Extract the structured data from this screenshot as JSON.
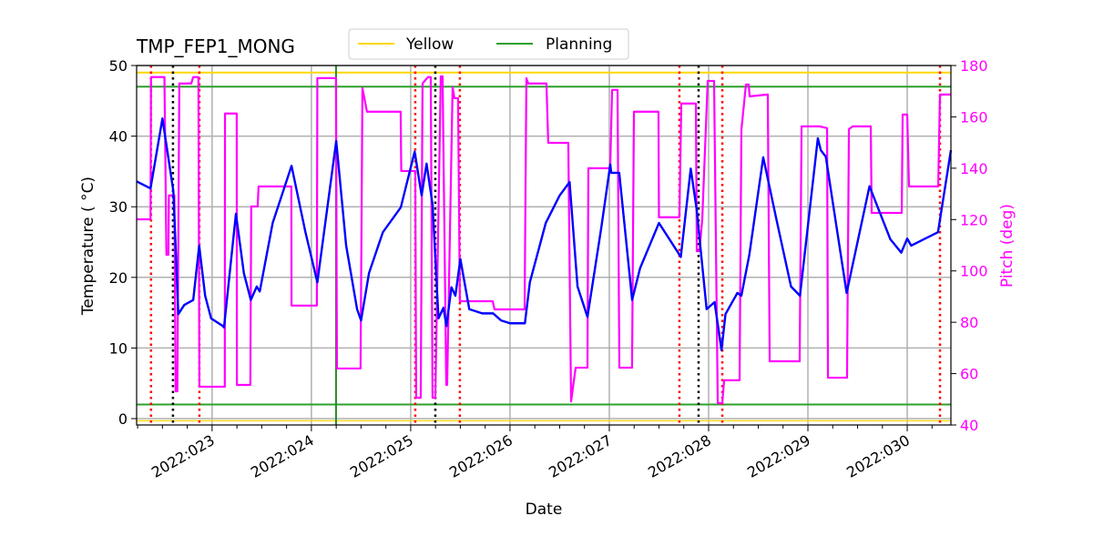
{
  "chart_data": {
    "type": "line",
    "title": "TMP_FEP1_MONG",
    "xlabel": "Date",
    "ylabel": "Temperature ($^\\circ$C)",
    "ylabel_display": "Temperature ( °C)",
    "y2label": "Pitch (deg)",
    "xlim": [
      22.24,
      30.44
    ],
    "ylim": [
      -0.9,
      50
    ],
    "y2lim": [
      40,
      180
    ],
    "grid": true,
    "legend_position": "top-center (above plot)",
    "x_ticks": [
      {
        "value": 23,
        "label": "2022:023"
      },
      {
        "value": 24,
        "label": "2022:024"
      },
      {
        "value": 25,
        "label": "2022:025"
      },
      {
        "value": 26,
        "label": "2022:026"
      },
      {
        "value": 27,
        "label": "2022:027"
      },
      {
        "value": 28,
        "label": "2022:028"
      },
      {
        "value": 29,
        "label": "2022:029"
      },
      {
        "value": 30,
        "label": "2022:030"
      }
    ],
    "y_ticks": [
      0,
      10,
      20,
      30,
      40,
      50
    ],
    "y2_ticks": [
      40,
      60,
      80,
      100,
      120,
      140,
      160,
      180
    ],
    "colors": {
      "temperature": "#0000ff",
      "pitch": "#ff00ff",
      "yellow": "#ffd700",
      "planning": "#228b22",
      "grid": "#b0b0b0",
      "red_marker": "#ff0000",
      "black_marker": "#000000"
    },
    "limit_lines": [
      {
        "name": "Yellow",
        "values": [
          49.0,
          -0.3
        ],
        "color": "#ffd700"
      },
      {
        "name": "Planning",
        "values": [
          47.0,
          2.0
        ],
        "color": "#2ca02c"
      }
    ],
    "legend": [
      {
        "label": "Yellow",
        "color": "#ffd700"
      },
      {
        "label": "Planning",
        "color": "#2ca02c"
      }
    ],
    "vertical_markers": {
      "red_dotted": [
        22.385,
        22.872,
        25.046,
        25.495,
        27.706,
        28.138,
        30.33
      ],
      "black_dotted": [
        22.606,
        25.248,
        27.899
      ],
      "green_solid": [
        24.248
      ]
    },
    "series": [
      {
        "axis": "left",
        "color": "#0000ff",
        "points": [
          [
            22.24,
            33.6
          ],
          [
            22.38,
            32.6
          ],
          [
            22.5,
            42.5
          ],
          [
            22.61,
            32.2
          ],
          [
            22.66,
            14.8
          ],
          [
            22.72,
            16.1
          ],
          [
            22.81,
            16.8
          ],
          [
            22.87,
            24.5
          ],
          [
            22.93,
            17.4
          ],
          [
            22.99,
            14.2
          ],
          [
            23.11,
            13.1
          ],
          [
            23.12,
            12.9
          ],
          [
            23.24,
            29.0
          ],
          [
            23.32,
            20.6
          ],
          [
            23.39,
            16.8
          ],
          [
            23.45,
            18.7
          ],
          [
            23.48,
            18.0
          ],
          [
            23.61,
            27.7
          ],
          [
            23.8,
            35.8
          ],
          [
            23.94,
            26.4
          ],
          [
            24.06,
            19.3
          ],
          [
            24.25,
            39.3
          ],
          [
            24.35,
            24.5
          ],
          [
            24.46,
            15.5
          ],
          [
            24.5,
            13.9
          ],
          [
            24.58,
            20.6
          ],
          [
            24.72,
            26.4
          ],
          [
            24.9,
            29.9
          ],
          [
            25.04,
            37.8
          ],
          [
            25.11,
            31.6
          ],
          [
            25.16,
            36.1
          ],
          [
            25.22,
            30.3
          ],
          [
            25.28,
            14.2
          ],
          [
            25.33,
            15.7
          ],
          [
            25.36,
            13.1
          ],
          [
            25.41,
            18.6
          ],
          [
            25.45,
            17.4
          ],
          [
            25.5,
            22.6
          ],
          [
            25.59,
            15.5
          ],
          [
            25.72,
            14.9
          ],
          [
            25.83,
            14.9
          ],
          [
            25.91,
            13.9
          ],
          [
            26.0,
            13.5
          ],
          [
            26.15,
            13.5
          ],
          [
            26.2,
            19.3
          ],
          [
            26.36,
            27.7
          ],
          [
            26.5,
            31.6
          ],
          [
            26.6,
            33.5
          ],
          [
            26.68,
            18.7
          ],
          [
            26.78,
            14.4
          ],
          [
            26.92,
            27.1
          ],
          [
            27.01,
            36.0
          ],
          [
            27.02,
            34.8
          ],
          [
            27.1,
            34.8
          ],
          [
            27.23,
            16.8
          ],
          [
            27.31,
            21.3
          ],
          [
            27.5,
            27.7
          ],
          [
            27.72,
            22.9
          ],
          [
            27.82,
            35.4
          ],
          [
            27.88,
            29.6
          ],
          [
            27.98,
            15.5
          ],
          [
            28.06,
            16.5
          ],
          [
            28.13,
            9.7
          ],
          [
            28.17,
            14.8
          ],
          [
            28.29,
            17.8
          ],
          [
            28.33,
            17.4
          ],
          [
            28.41,
            23.2
          ],
          [
            28.55,
            37.0
          ],
          [
            28.68,
            28.4
          ],
          [
            28.83,
            18.7
          ],
          [
            28.92,
            17.4
          ],
          [
            29.1,
            39.7
          ],
          [
            29.13,
            38.0
          ],
          [
            29.18,
            37.1
          ],
          [
            29.39,
            17.8
          ],
          [
            29.62,
            32.9
          ],
          [
            29.83,
            25.4
          ],
          [
            29.94,
            23.5
          ],
          [
            30.0,
            25.5
          ],
          [
            30.04,
            24.5
          ],
          [
            30.31,
            26.4
          ],
          [
            30.44,
            38.0
          ]
        ]
      },
      {
        "axis": "right",
        "color": "#ff00ff",
        "points": [
          [
            22.24,
            120.1
          ],
          [
            22.38,
            120.1
          ],
          [
            22.385,
            175.5
          ],
          [
            22.52,
            175.5
          ],
          [
            22.54,
            106.3
          ],
          [
            22.56,
            106.3
          ],
          [
            22.565,
            129.4
          ],
          [
            22.62,
            129.4
          ],
          [
            22.633,
            53.1
          ],
          [
            22.65,
            53.1
          ],
          [
            22.67,
            173
          ],
          [
            22.79,
            173
          ],
          [
            22.81,
            175.5
          ],
          [
            22.862,
            175.5
          ],
          [
            22.872,
            54.9
          ],
          [
            23.128,
            54.9
          ],
          [
            23.13,
            161.3
          ],
          [
            23.248,
            161.3
          ],
          [
            23.25,
            55.6
          ],
          [
            23.385,
            55.6
          ],
          [
            23.394,
            125.1
          ],
          [
            23.459,
            125.1
          ],
          [
            23.468,
            132.9
          ],
          [
            23.798,
            132.9
          ],
          [
            23.8,
            86.5
          ],
          [
            24.055,
            86.5
          ],
          [
            24.06,
            175.1
          ],
          [
            24.248,
            175.1
          ],
          [
            24.257,
            62
          ],
          [
            24.495,
            62
          ],
          [
            24.514,
            171.2
          ],
          [
            24.56,
            162
          ],
          [
            24.899,
            162
          ],
          [
            24.905,
            138.9
          ],
          [
            25.046,
            138.9
          ],
          [
            25.055,
            50.6
          ],
          [
            25.101,
            50.6
          ],
          [
            25.119,
            173
          ],
          [
            25.174,
            175.5
          ],
          [
            25.202,
            175.5
          ],
          [
            25.22,
            50.6
          ],
          [
            25.248,
            50.6
          ],
          [
            25.303,
            175.8
          ],
          [
            25.321,
            175.8
          ],
          [
            25.358,
            55.6
          ],
          [
            25.367,
            55.6
          ],
          [
            25.422,
            171.6
          ],
          [
            25.44,
            167.3
          ],
          [
            25.477,
            167.3
          ],
          [
            25.495,
            88.2
          ],
          [
            25.826,
            88.2
          ],
          [
            25.844,
            85
          ],
          [
            26.147,
            85
          ],
          [
            26.165,
            175.1
          ],
          [
            26.183,
            173
          ],
          [
            26.367,
            173
          ],
          [
            26.385,
            149.9
          ],
          [
            26.587,
            149.9
          ],
          [
            26.615,
            49.2
          ],
          [
            26.661,
            62.3
          ],
          [
            26.78,
            62.3
          ],
          [
            26.789,
            140
          ],
          [
            27.009,
            140
          ],
          [
            27.028,
            170.5
          ],
          [
            27.083,
            170.5
          ],
          [
            27.101,
            62.3
          ],
          [
            27.229,
            62.3
          ],
          [
            27.248,
            162
          ],
          [
            27.495,
            162
          ],
          [
            27.5,
            120.9
          ],
          [
            27.706,
            120.9
          ],
          [
            27.725,
            165.2
          ],
          [
            27.872,
            165.2
          ],
          [
            27.881,
            107.7
          ],
          [
            27.908,
            107.7
          ],
          [
            27.936,
            120.1
          ],
          [
            27.991,
            174
          ],
          [
            28.055,
            174
          ],
          [
            28.092,
            48.5
          ],
          [
            28.138,
            48.5
          ],
          [
            28.156,
            57.4
          ],
          [
            28.312,
            57.4
          ],
          [
            28.33,
            154.9
          ],
          [
            28.376,
            172.6
          ],
          [
            28.404,
            172.6
          ],
          [
            28.413,
            168
          ],
          [
            28.596,
            168.7
          ],
          [
            28.615,
            64.8
          ],
          [
            28.917,
            64.8
          ],
          [
            28.936,
            156.3
          ],
          [
            29.119,
            156.3
          ],
          [
            29.193,
            155.6
          ],
          [
            29.202,
            58.4
          ],
          [
            29.394,
            58.4
          ],
          [
            29.413,
            155.2
          ],
          [
            29.45,
            156.3
          ],
          [
            29.633,
            156.3
          ],
          [
            29.642,
            122.6
          ],
          [
            29.945,
            122.6
          ],
          [
            29.954,
            160.9
          ],
          [
            30.0,
            160.9
          ],
          [
            30.018,
            132.9
          ],
          [
            30.312,
            132.9
          ],
          [
            30.33,
            168.7
          ],
          [
            30.44,
            168.7
          ]
        ]
      }
    ]
  }
}
